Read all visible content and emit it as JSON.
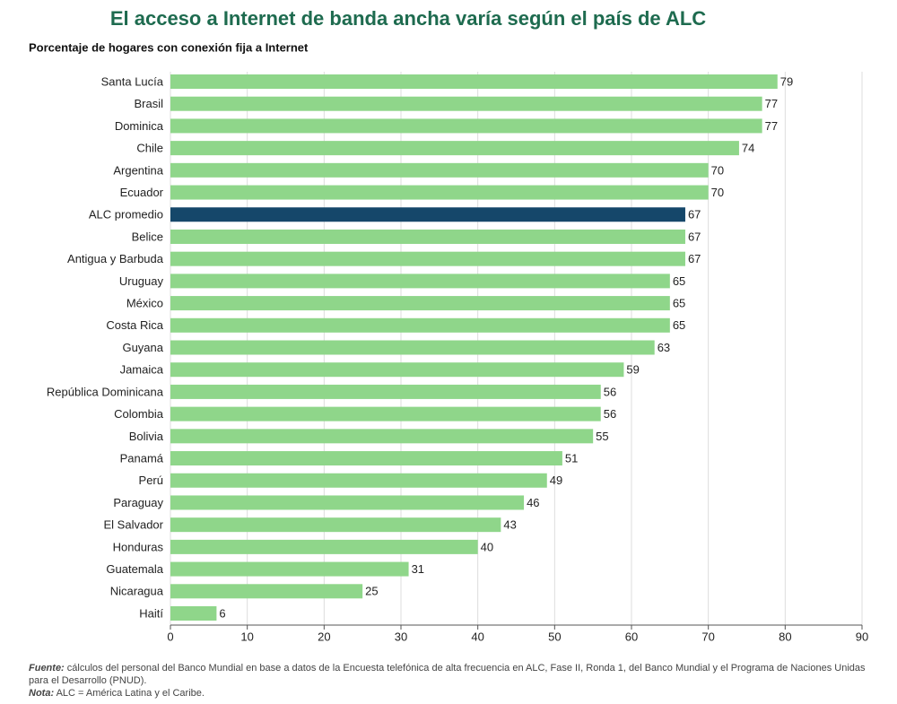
{
  "chart_data": {
    "type": "bar",
    "orientation": "horizontal",
    "title": "El acceso a Internet de banda ancha varía según el país de ALC",
    "subtitle": "Porcentaje de hogares con conexión fija a Internet",
    "categories": [
      "Santa Lucía",
      "Brasil",
      "Dominica",
      "Chile",
      "Argentina",
      "Ecuador",
      "ALC promedio",
      "Belice",
      "Antigua y Barbuda",
      "Uruguay",
      "México",
      "Costa Rica",
      "Guyana",
      "Jamaica",
      "República Dominicana",
      "Colombia",
      "Bolivia",
      "Panamá",
      "Perú",
      "Paraguay",
      "El Salvador",
      "Honduras",
      "Guatemala",
      "Nicaragua",
      "Haití"
    ],
    "values": [
      79,
      77,
      77,
      74,
      70,
      70,
      67,
      67,
      67,
      65,
      65,
      65,
      63,
      59,
      56,
      56,
      55,
      51,
      49,
      46,
      43,
      40,
      31,
      25,
      6
    ],
    "colors": [
      "#8fd68a",
      "#8fd68a",
      "#8fd68a",
      "#8fd68a",
      "#8fd68a",
      "#8fd68a",
      "#15476a",
      "#8fd68a",
      "#8fd68a",
      "#8fd68a",
      "#8fd68a",
      "#8fd68a",
      "#8fd68a",
      "#8fd68a",
      "#8fd68a",
      "#8fd68a",
      "#8fd68a",
      "#8fd68a",
      "#8fd68a",
      "#8fd68a",
      "#8fd68a",
      "#8fd68a",
      "#8fd68a",
      "#8fd68a",
      "#8fd68a"
    ],
    "xlim": [
      0,
      90
    ],
    "xticks": [
      0,
      10,
      20,
      30,
      40,
      50,
      60,
      70,
      80,
      90
    ],
    "grid": true
  },
  "notes": {
    "source_label": "Fuente:",
    "source_text": "cálculos del personal del Banco Mundial en base a datos de la Encuesta telefónica de alta frecuencia en ALC, Fase II, Ronda 1, del Banco Mundial y el Programa de Naciones Unidas para el Desarrollo (PNUD).",
    "note_label": "Nota:",
    "note_text": "ALC = América Latina y el Caribe."
  }
}
